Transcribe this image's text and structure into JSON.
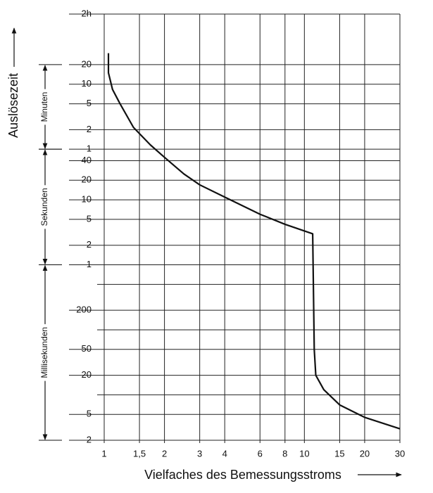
{
  "chart_data": {
    "type": "line",
    "x_label": "Vielfaches des Bemessungsstroms",
    "y_label": "Auslösezeit",
    "log_x": true,
    "log_y": true,
    "grid": true,
    "xlim": [
      1,
      30
    ],
    "xticks": [
      1,
      {
        "value": 1.5,
        "label": "1,5"
      },
      2,
      3,
      4,
      6,
      8,
      10,
      15,
      20,
      30
    ],
    "ylim": [
      0.002,
      7200
    ],
    "yticks": [
      {
        "value": 7200,
        "label": "2h"
      },
      {
        "value": 1200,
        "label": "20"
      },
      {
        "value": 600,
        "label": "10"
      },
      {
        "value": 300,
        "label": "5"
      },
      {
        "value": 120,
        "label": "2"
      },
      {
        "value": 60,
        "label": "1"
      },
      40,
      20,
      10,
      5,
      2,
      1,
      {
        "value": 0.2,
        "label": "200"
      },
      {
        "value": 0.05,
        "label": "50"
      },
      {
        "value": 0.02,
        "label": "20"
      },
      {
        "value": 0.005,
        "label": "5"
      },
      {
        "value": 0.002,
        "label": "2"
      }
    ],
    "y_extra_grid": [
      0.5,
      0.1,
      0.01
    ],
    "ranges": [
      {
        "label": "Minuten",
        "range": [
          1200,
          60
        ]
      },
      {
        "label": "Sekunden",
        "range": [
          60,
          1
        ]
      },
      {
        "label": "Millisekunden",
        "range": [
          1,
          0.002
        ]
      }
    ],
    "series": [
      {
        "color": "#111111",
        "x": [
          1.05,
          1.05,
          1.1,
          1.2,
          1.4,
          1.7,
          2,
          2.5,
          3,
          4,
          6,
          8,
          11,
          11.2,
          11.4,
          12.5,
          15,
          20,
          30
        ],
        "values": [
          1800,
          900,
          500,
          300,
          130,
          70,
          45,
          25,
          17,
          11,
          6,
          4.2,
          3,
          0.05,
          0.02,
          0.012,
          0.007,
          0.0045,
          0.003
        ]
      }
    ]
  }
}
